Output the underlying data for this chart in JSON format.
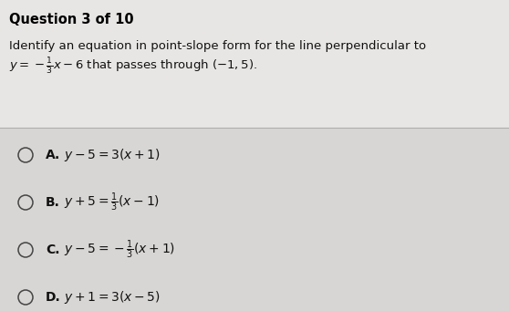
{
  "title": "Question 3 of 10",
  "question_line1": "Identify an equation in point-slope form for the line perpendicular to",
  "question_line2": "$y = -\\frac{1}{3}x - 6$ that passes through $(-1, 5)$.",
  "options": [
    {
      "label": "A.",
      "text": "$y - 5 = 3(x + 1)$"
    },
    {
      "label": "B.",
      "text": "$y + 5 = \\frac{1}{3}(x - 1)$"
    },
    {
      "label": "C.",
      "text": "$y - 5 = -\\frac{1}{3}(x + 1)$"
    },
    {
      "label": "D.",
      "text": "$y + 1 = 3(x - 5)$"
    }
  ],
  "bg_color": "#d8d6d4",
  "top_panel_color": "#e8e6e4",
  "bottom_panel_color": "#d8d6d4",
  "title_color": "#000000",
  "text_color": "#111111",
  "figsize": [
    5.58,
    3.41
  ],
  "dpi": 100
}
